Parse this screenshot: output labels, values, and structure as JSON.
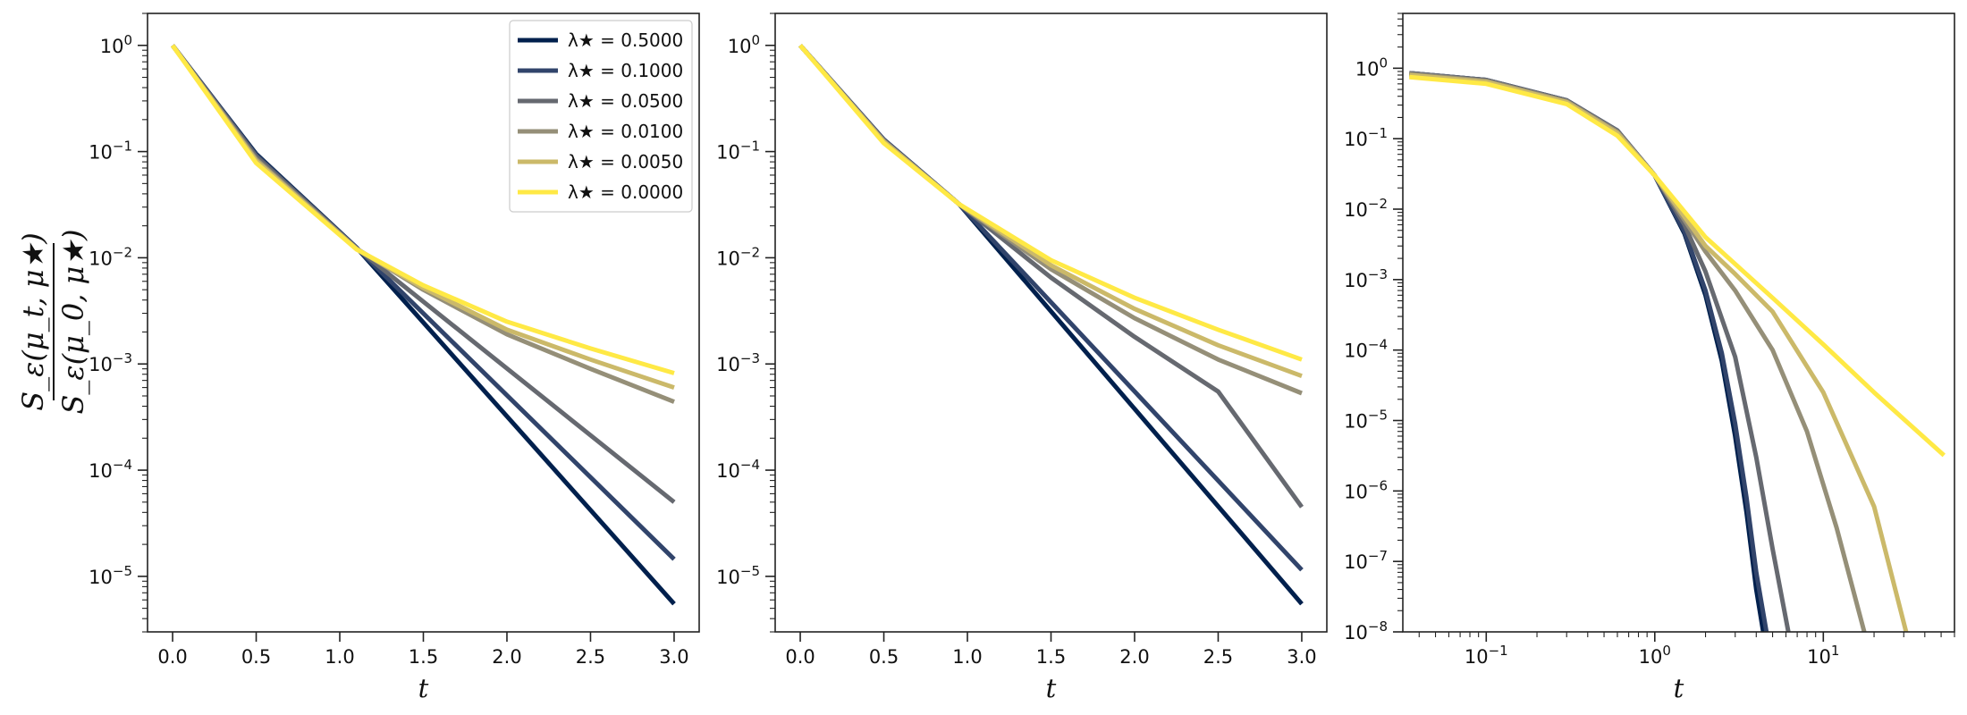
{
  "chart_data": [
    {
      "type": "line",
      "panel": "left",
      "xscale": "linear",
      "yscale": "log",
      "xlim": [
        -0.15,
        3.15
      ],
      "ylim": [
        3e-06,
        2
      ],
      "xlabel": "t",
      "ylabel": "S_ε(μ_t, μ★) / S_ε(μ_0, μ★)",
      "xticks": [
        "0.0",
        "0.5",
        "1.0",
        "1.5",
        "2.0",
        "2.5",
        "3.0"
      ],
      "yticks": [
        "10^0",
        "10^-1",
        "10^-2",
        "10^-3",
        "10^-4",
        "10^-5"
      ],
      "legend": "top-right",
      "series": [
        {
          "name": "λ★ = 0.5000",
          "color": "#00204d",
          "x": [
            0,
            0.5,
            1.1,
            3.0
          ],
          "y": [
            1,
            0.095,
            0.0125,
            5.5e-06
          ]
        },
        {
          "name": "λ★ = 0.1000",
          "color": "#31446b",
          "x": [
            0,
            0.5,
            1.1,
            3.0
          ],
          "y": [
            1,
            0.093,
            0.0124,
            1.45e-05
          ]
        },
        {
          "name": "λ★ = 0.0500",
          "color": "#666970",
          "x": [
            0,
            0.5,
            1.1,
            3.0
          ],
          "y": [
            1,
            0.09,
            0.0123,
            5e-05
          ]
        },
        {
          "name": "λ★ = 0.0100",
          "color": "#958f78",
          "x": [
            0,
            0.5,
            1.1,
            1.5,
            2.0,
            2.5,
            3.0
          ],
          "y": [
            1,
            0.085,
            0.0122,
            0.005,
            0.0019,
            0.0009,
            0.00044
          ]
        },
        {
          "name": "λ★ = 0.0050",
          "color": "#cbb969",
          "x": [
            0,
            0.5,
            1.1,
            1.5,
            2.0,
            2.5,
            3.0
          ],
          "y": [
            1,
            0.082,
            0.0121,
            0.0052,
            0.0021,
            0.0011,
            0.0006
          ]
        },
        {
          "name": "λ★ = 0.0000",
          "color": "#ffe945",
          "x": [
            0,
            0.5,
            1.1,
            1.5,
            2.0,
            2.5,
            3.0
          ],
          "y": [
            1,
            0.078,
            0.012,
            0.0055,
            0.0025,
            0.0014,
            0.00082
          ]
        }
      ]
    },
    {
      "type": "line",
      "panel": "middle",
      "xscale": "linear",
      "yscale": "log",
      "xlim": [
        -0.15,
        3.15
      ],
      "ylim": [
        3e-06,
        2
      ],
      "xlabel": "t",
      "xticks": [
        "0.0",
        "0.5",
        "1.0",
        "1.5",
        "2.0",
        "2.5",
        "3.0"
      ],
      "yticks": [
        "10^0",
        "10^-1",
        "10^-2",
        "10^-3",
        "10^-4",
        "10^-5"
      ],
      "series": [
        {
          "name": "λ★ = 0.5000",
          "x": [
            0,
            0.5,
            0.95,
            3.0
          ],
          "y": [
            1,
            0.13,
            0.032,
            5.5e-06
          ]
        },
        {
          "name": "λ★ = 0.1000",
          "x": [
            0,
            0.5,
            0.95,
            3.0
          ],
          "y": [
            1,
            0.13,
            0.032,
            1.15e-05
          ]
        },
        {
          "name": "λ★ = 0.0500",
          "x": [
            0,
            0.5,
            0.95,
            1.5,
            2.0,
            2.5,
            3.0
          ],
          "y": [
            1,
            0.128,
            0.032,
            0.0065,
            0.0018,
            0.00055,
            4.5e-05
          ]
        },
        {
          "name": "λ★ = 0.0100",
          "x": [
            0,
            0.5,
            0.95,
            1.5,
            2.0,
            2.5,
            3.0
          ],
          "y": [
            1,
            0.126,
            0.032,
            0.0078,
            0.0027,
            0.0011,
            0.00053
          ]
        },
        {
          "name": "λ★ = 0.0050",
          "x": [
            0,
            0.5,
            0.95,
            1.5,
            2.0,
            2.5,
            3.0
          ],
          "y": [
            1,
            0.124,
            0.032,
            0.0085,
            0.0033,
            0.0015,
            0.00077
          ]
        },
        {
          "name": "λ★ = 0.0000",
          "x": [
            0,
            0.5,
            0.95,
            1.5,
            2.0,
            2.5,
            3.0
          ],
          "y": [
            1,
            0.12,
            0.032,
            0.0095,
            0.0042,
            0.0021,
            0.0011
          ]
        }
      ]
    },
    {
      "type": "line",
      "panel": "right",
      "xscale": "log",
      "yscale": "log",
      "xlim": [
        0.032,
        60
      ],
      "ylim": [
        1e-08,
        6
      ],
      "xlabel": "t",
      "xticks": [
        "10^-1",
        "10^0",
        "10^1"
      ],
      "yticks": [
        "10^0",
        "10^-1",
        "10^-2",
        "10^-3",
        "10^-4",
        "10^-5",
        "10^-6",
        "10^-7",
        "10^-8"
      ],
      "series": [
        {
          "name": "λ★ = 0.5000",
          "x": [
            0.035,
            0.1,
            0.3,
            0.6,
            1.0,
            1.5,
            2.0,
            2.5,
            3.0,
            3.5,
            4.0,
            4.4
          ],
          "y": [
            0.85,
            0.68,
            0.35,
            0.13,
            0.03,
            0.0045,
            0.0006,
            7e-05,
            6e-06,
            5e-07,
            4e-08,
            1e-08
          ]
        },
        {
          "name": "λ★ = 0.1000",
          "x": [
            0.035,
            0.1,
            0.3,
            0.6,
            1.0,
            1.5,
            2.0,
            2.5,
            3.0,
            3.5,
            4.0,
            4.6
          ],
          "y": [
            0.85,
            0.68,
            0.35,
            0.13,
            0.03,
            0.0048,
            0.0007,
            9e-05,
            9e-06,
            8e-07,
            7e-08,
            1e-08
          ]
        },
        {
          "name": "λ★ = 0.0500",
          "x": [
            0.035,
            0.1,
            0.3,
            0.6,
            1.0,
            1.5,
            2.0,
            3.0,
            4.0,
            5.0,
            6.2
          ],
          "y": [
            0.85,
            0.68,
            0.35,
            0.13,
            0.03,
            0.006,
            0.0013,
            8e-05,
            3e-06,
            1.5e-07,
            1e-08
          ]
        },
        {
          "name": "λ★ = 0.0100",
          "x": [
            0.035,
            0.1,
            0.3,
            0.6,
            1.0,
            2.0,
            3.0,
            5.0,
            8.0,
            12.0,
            17.5
          ],
          "y": [
            0.83,
            0.66,
            0.34,
            0.125,
            0.03,
            0.0025,
            0.0007,
            0.0001,
            7e-06,
            3e-07,
            1e-08
          ]
        },
        {
          "name": "λ★ = 0.0050",
          "x": [
            0.035,
            0.1,
            0.3,
            0.6,
            1.0,
            2.0,
            3.0,
            5.0,
            10.0,
            20.0,
            31.0
          ],
          "y": [
            0.8,
            0.64,
            0.33,
            0.12,
            0.03,
            0.003,
            0.0012,
            0.00035,
            2.5e-05,
            6e-07,
            1e-08
          ]
        },
        {
          "name": "λ★ = 0.0000",
          "x": [
            0.035,
            0.1,
            0.3,
            0.6,
            1.0,
            2.0,
            5.0,
            10.0,
            20.0,
            52.0
          ],
          "y": [
            0.75,
            0.6,
            0.31,
            0.11,
            0.03,
            0.004,
            0.00055,
            0.00012,
            2.5e-05,
            3.2e-06
          ]
        }
      ]
    }
  ]
}
